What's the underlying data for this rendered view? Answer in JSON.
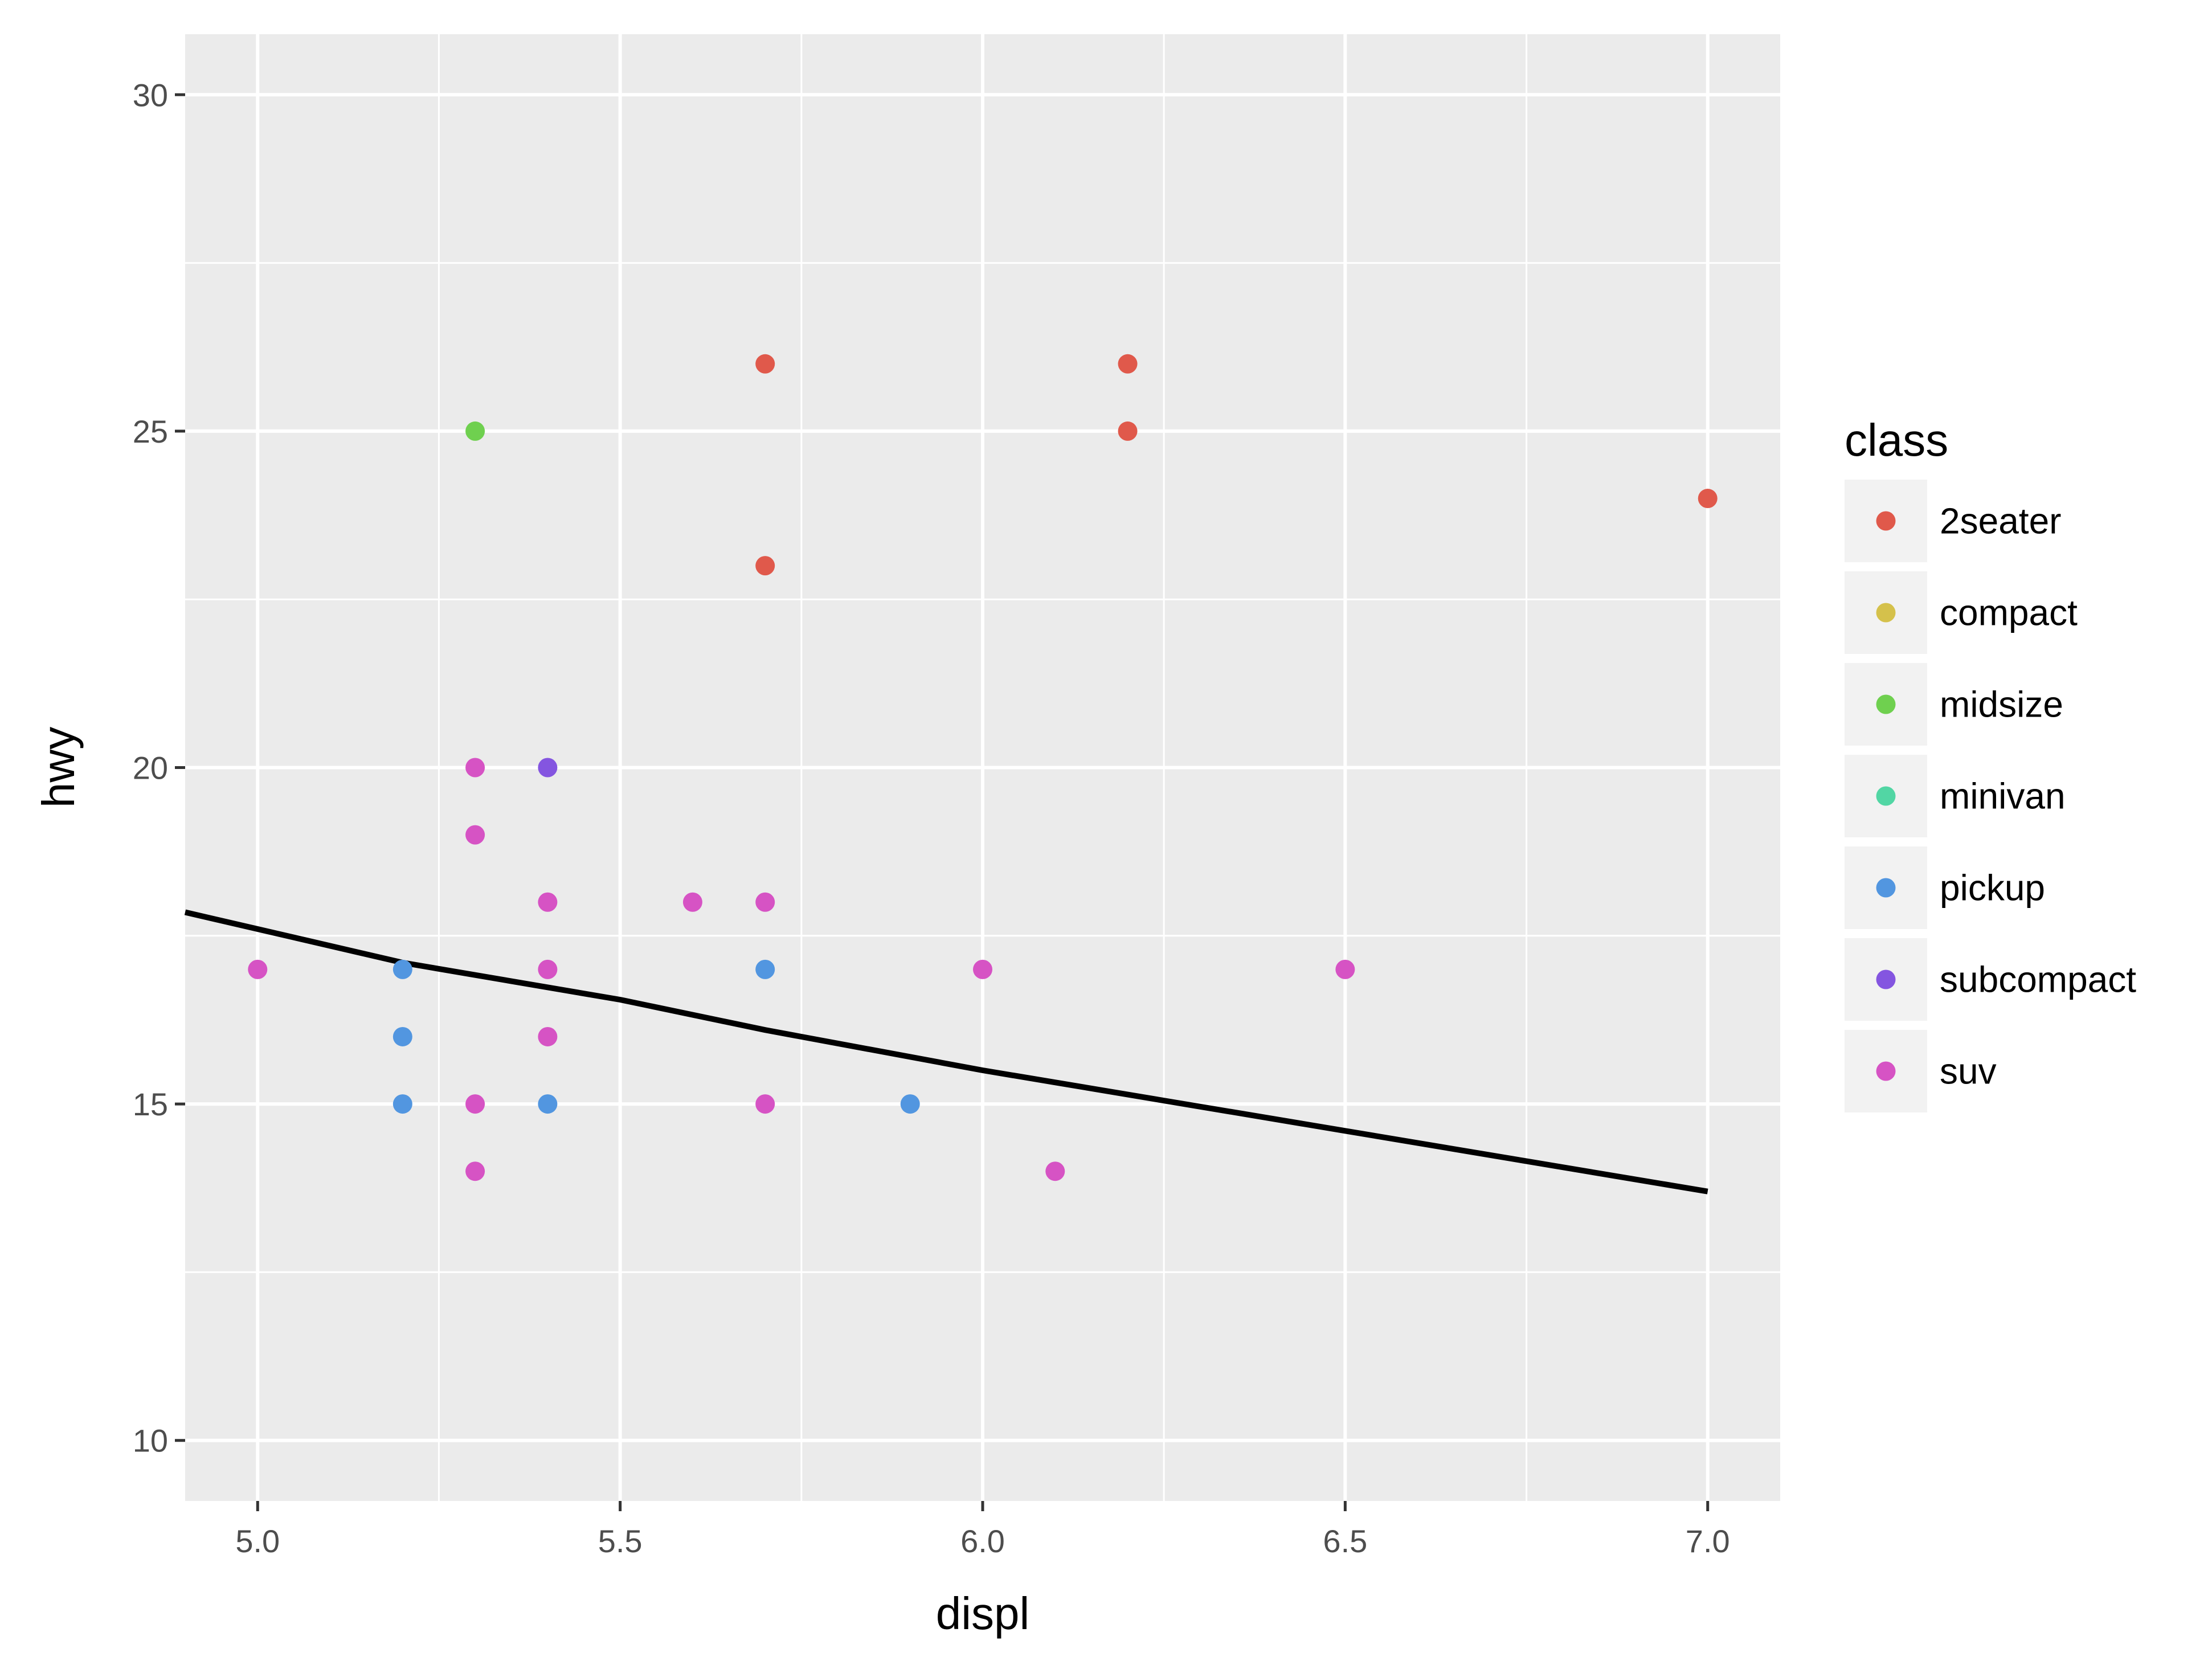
{
  "chart_data": {
    "type": "scatter",
    "title": "",
    "xlabel": "displ",
    "ylabel": "hwy",
    "xlim": [
      4.9,
      7.1
    ],
    "ylim": [
      9.1,
      30.9
    ],
    "x_ticks": [
      5.0,
      5.5,
      6.0,
      6.5,
      7.0
    ],
    "x_tick_labels": [
      "5.0",
      "5.5",
      "6.0",
      "6.5",
      "7.0"
    ],
    "y_ticks": [
      10,
      15,
      20,
      25,
      30
    ],
    "y_tick_labels": [
      "10",
      "15",
      "20",
      "25",
      "30"
    ],
    "grid": true,
    "background": "#ebebeb",
    "legend": {
      "title": "class",
      "position": "right",
      "entries": [
        {
          "label": "2seater",
          "color": "#e0594b"
        },
        {
          "label": "compact",
          "color": "#d5c14b"
        },
        {
          "label": "midsize",
          "color": "#6fd04f"
        },
        {
          "label": "minivan",
          "color": "#52d6a4"
        },
        {
          "label": "pickup",
          "color": "#5296e0"
        },
        {
          "label": "subcompact",
          "color": "#8455e0"
        },
        {
          "label": "suv",
          "color": "#d653c4"
        }
      ]
    },
    "series": [
      {
        "name": "2seater",
        "color": "#e0594b",
        "points": [
          [
            5.7,
            26
          ],
          [
            6.2,
            26
          ],
          [
            6.2,
            25
          ],
          [
            7.0,
            24
          ],
          [
            5.7,
            23
          ]
        ]
      },
      {
        "name": "midsize",
        "color": "#6fd04f",
        "points": [
          [
            5.3,
            25
          ]
        ]
      },
      {
        "name": "pickup",
        "color": "#5296e0",
        "points": [
          [
            5.2,
            17
          ],
          [
            5.2,
            16
          ],
          [
            5.2,
            15
          ],
          [
            5.4,
            15
          ],
          [
            5.7,
            17
          ],
          [
            5.9,
            15
          ]
        ]
      },
      {
        "name": "subcompact",
        "color": "#8455e0",
        "points": [
          [
            5.4,
            20
          ]
        ]
      },
      {
        "name": "suv",
        "color": "#d653c4",
        "points": [
          [
            5.0,
            17
          ],
          [
            5.3,
            20
          ],
          [
            5.3,
            19
          ],
          [
            5.3,
            15
          ],
          [
            5.3,
            14
          ],
          [
            5.4,
            18
          ],
          [
            5.4,
            17
          ],
          [
            5.4,
            16
          ],
          [
            5.6,
            18
          ],
          [
            5.7,
            18
          ],
          [
            5.7,
            15
          ],
          [
            6.0,
            17
          ],
          [
            6.1,
            14
          ],
          [
            6.5,
            17
          ]
        ]
      }
    ],
    "trend_line": {
      "color": "#000000",
      "points": [
        [
          4.9,
          17.85
        ],
        [
          5.0,
          17.6
        ],
        [
          5.2,
          17.1
        ],
        [
          5.5,
          16.55
        ],
        [
          5.7,
          16.1
        ],
        [
          6.0,
          15.5
        ],
        [
          6.5,
          14.6
        ],
        [
          7.0,
          13.7
        ]
      ]
    }
  }
}
